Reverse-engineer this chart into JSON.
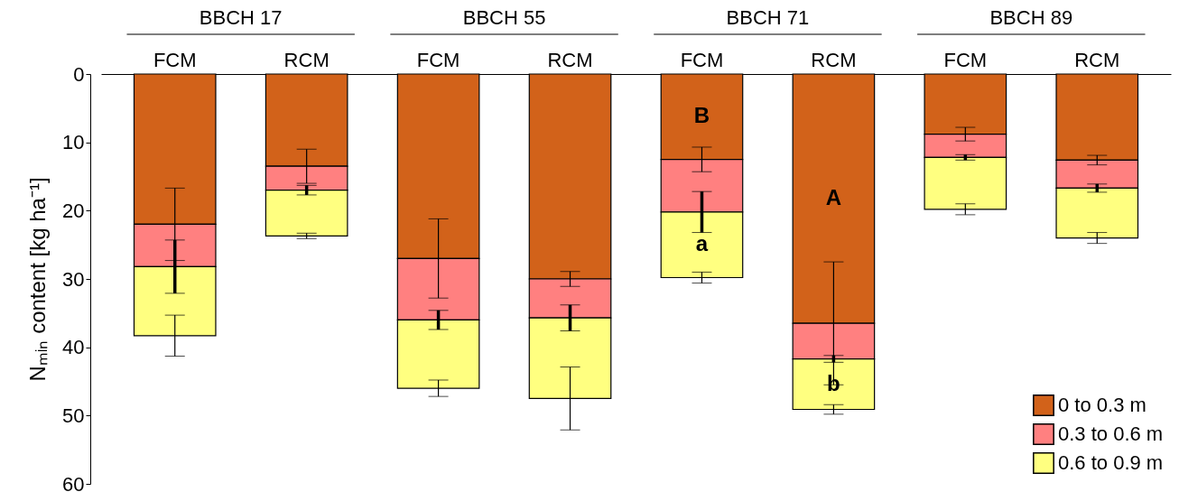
{
  "chart_data": {
    "type": "bar",
    "stacked": true,
    "ylabel": "Nₘᵢₙ content [kg ha⁻¹]",
    "categories": [
      "FCM",
      "RCM",
      "FCM",
      "RCM",
      "FCM",
      "RCM",
      "FCM",
      "RCM"
    ],
    "series": [
      {
        "name": "0 to 0.3 m",
        "color": "#d2621a",
        "values": [
          22,
          13.5,
          27,
          30,
          12.5,
          36.5,
          8.8,
          12.6
        ],
        "errors": [
          5.3,
          2.5,
          5.8,
          1.1,
          1.8,
          9,
          1,
          0.7
        ]
      },
      {
        "name": "0.3 to 0.6 m",
        "color": "#ff8080",
        "values": [
          6.2,
          3.5,
          9,
          5.7,
          7.7,
          5.2,
          3.4,
          4.1
        ],
        "errors": [
          3.9,
          0.7,
          1.4,
          1.9,
          3,
          0.5,
          0.4,
          0.6
        ]
      },
      {
        "name": "0.6 to 0.9 m",
        "color": "#ffff80",
        "values": [
          10.1,
          6.7,
          10,
          11.8,
          9.6,
          7.4,
          7.6,
          7.3
        ],
        "errors": [
          3,
          0.4,
          1.2,
          4.6,
          0.8,
          0.7,
          0.8,
          0.8
        ]
      }
    ],
    "ylim": [
      60,
      0
    ],
    "yticks": [
      0,
      10,
      20,
      30,
      40,
      50,
      60
    ],
    "grid": false,
    "legend": "bottom right",
    "annotations": [
      "BBCH 17",
      "BBCH 55",
      "BBCH 71",
      "B",
      "a",
      "A",
      "b",
      "BBCH 89"
    ]
  }
}
